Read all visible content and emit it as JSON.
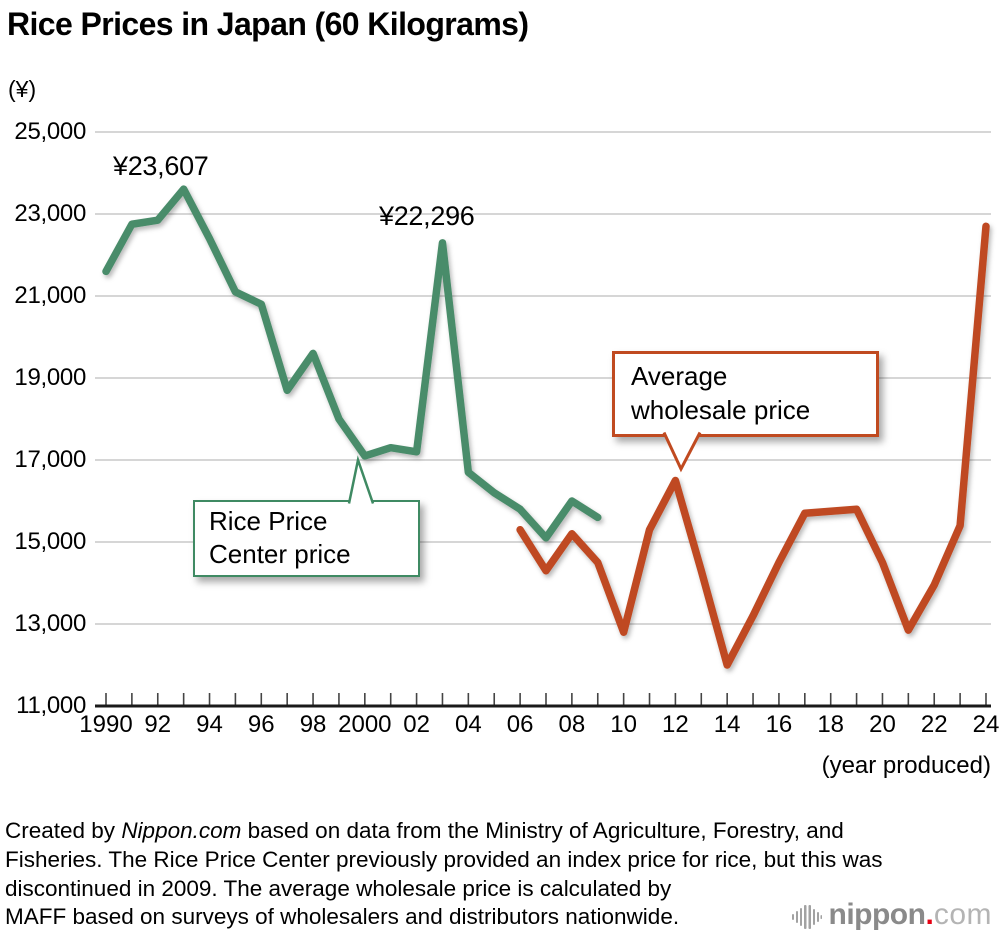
{
  "title": "Rice Prices in Japan (60 Kilograms)",
  "y_axis_unit": "(¥)",
  "x_axis_note": "(year produced)",
  "annotations": {
    "peak_1993": "¥23,607",
    "peak_2003": "¥22,296"
  },
  "callouts": {
    "green_line1": "Rice Price",
    "green_line2": "Center price",
    "orange_line1": "Average",
    "orange_line2": "wholesale price"
  },
  "footer": {
    "line1_pre": "Created by ",
    "line1_italic": "Nippon.com",
    "line1_post": " based on data from the Ministry of Agriculture, Forestry, and",
    "line2": "Fisheries. The Rice Price Center previously provided an index price for rice, but this was",
    "line3": "discontinued in 2009. The average wholesale price is calculated by",
    "line4": "MAFF based on surveys of wholesalers and distributors nationwide."
  },
  "logo": {
    "name_bold": "nippon",
    "dot": ".",
    "name_light": "com"
  },
  "colors": {
    "green": "#4a8c6a",
    "green_border": "#3f8a63",
    "orange": "#bf4a23",
    "orange_border": "#c04a20",
    "grid": "#c9c9c9",
    "axis": "#1a1a1a",
    "tick": "#444444"
  },
  "chart_data": {
    "type": "line",
    "title": "Rice Prices in Japan (60 Kilograms)",
    "ylabel": "(¥)",
    "xlabel": "(year produced)",
    "ylim": [
      11000,
      25000
    ],
    "grid": true,
    "y_ticks": [
      25000,
      23000,
      21000,
      19000,
      17000,
      15000,
      13000,
      11000
    ],
    "y_tick_labels": [
      "25,000",
      "23,000",
      "21,000",
      "19,000",
      "17,000",
      "15,000",
      "13,000",
      "11,000"
    ],
    "x_tick_years": [
      1990,
      1992,
      1994,
      1996,
      1998,
      2000,
      2002,
      2004,
      2006,
      2008,
      2010,
      2012,
      2014,
      2016,
      2018,
      2020,
      2022,
      2024
    ],
    "x_tick_labels": [
      "1990",
      "92",
      "94",
      "96",
      "98",
      "2000",
      "02",
      "04",
      "06",
      "08",
      "10",
      "12",
      "14",
      "16",
      "18",
      "20",
      "22",
      "24"
    ],
    "x_minor_tick_every_year": true,
    "x_range": [
      1990,
      2024
    ],
    "series": [
      {
        "name": "Rice Price Center price",
        "color": "#4a8c6a",
        "years": [
          1990,
          1991,
          1992,
          1993,
          1994,
          1995,
          1996,
          1997,
          1998,
          1999,
          2000,
          2001,
          2002,
          2003,
          2004,
          2005,
          2006,
          2007,
          2008,
          2009
        ],
        "values": [
          21600,
          22750,
          22850,
          23607,
          22400,
          21100,
          20800,
          18700,
          19600,
          18000,
          17100,
          17300,
          17200,
          22296,
          16700,
          16200,
          15800,
          15100,
          16000,
          15600
        ]
      },
      {
        "name": "Average wholesale price",
        "color": "#bf4a23",
        "years": [
          2006,
          2007,
          2008,
          2009,
          2010,
          2011,
          2012,
          2013,
          2014,
          2015,
          2016,
          2017,
          2018,
          2019,
          2020,
          2021,
          2022,
          2023,
          2024
        ],
        "values": [
          15300,
          14300,
          15200,
          14500,
          12800,
          15300,
          16500,
          14300,
          12000,
          13200,
          14500,
          15700,
          15750,
          15800,
          14500,
          12850,
          13950,
          15400,
          22700
        ]
      }
    ],
    "point_annotations": [
      {
        "text": "¥23,607",
        "year": 1993,
        "value": 23607,
        "series": "Rice Price Center price"
      },
      {
        "text": "¥22,296",
        "year": 2003,
        "value": 22296,
        "series": "Rice Price Center price"
      }
    ],
    "legend_position": "callouts-on-plot"
  }
}
